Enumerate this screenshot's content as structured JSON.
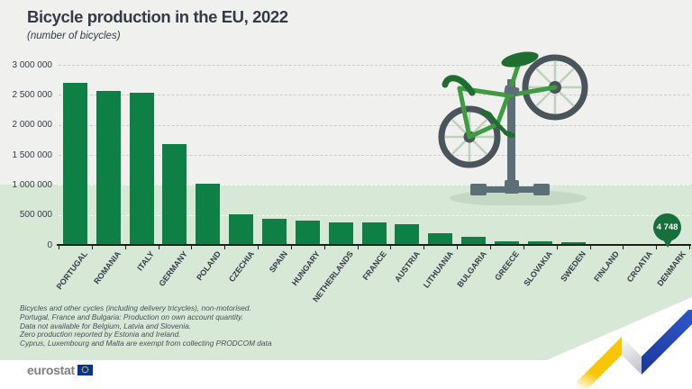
{
  "header": {
    "title": "Bicycle production in the EU, 2022",
    "subtitle": "(number of bicycles)"
  },
  "chart_data": {
    "type": "bar",
    "title": "Bicycle production in the EU, 2022",
    "unit": "number of bicycles",
    "categories": [
      "PORTUGAL",
      "ROMANIA",
      "ITALY",
      "GERMANY",
      "POLAND",
      "CZECHIA",
      "SPAIN",
      "HUNGARY",
      "NETHERLANDS",
      "FRANCE",
      "AUSTRIA",
      "LITHUANIA",
      "BULGARIA",
      "GREECE",
      "SLOVAKIA",
      "SWEDEN",
      "FINLAND",
      "CROATIA",
      "DENMARK"
    ],
    "values": [
      2700000,
      2560000,
      2540000,
      1680000,
      1020000,
      505000,
      430000,
      400000,
      380000,
      375000,
      340000,
      200000,
      130000,
      65000,
      60000,
      45000,
      15000,
      8000,
      4748
    ],
    "ylim": [
      0,
      3000000
    ],
    "yticks": [
      {
        "value": 0,
        "label": "0"
      },
      {
        "value": 500000,
        "label": "500 000"
      },
      {
        "value": 1000000,
        "label": "1 000 000"
      },
      {
        "value": 1500000,
        "label": "1 500 000"
      },
      {
        "value": 2000000,
        "label": "2 000 000"
      },
      {
        "value": 2500000,
        "label": "2 500 000"
      },
      {
        "value": 3000000,
        "label": "3 000 000"
      }
    ],
    "grid": "dashed-horizontal",
    "legend": "none",
    "annotation": {
      "category": "DENMARK",
      "value": 4748,
      "label": "4 748"
    }
  },
  "footnotes": [
    "Bicycles and other cycles (including delivery tricycles), non-motorised.",
    "Portugal, France and Bulgaria: Production on own account quantity.",
    "Data not available for Belgium, Latvia and Slovenia.",
    "Zero production reported by Estonia and Ireland.",
    "Cyprus, Luxembourg and Malta are exempt from collecting PRODCOM data"
  ],
  "footer": {
    "logo_text": "eurostat"
  },
  "colors": {
    "background_top": "#f0f1ef",
    "background_band": "#d8e8d6",
    "bar": "#0e8045",
    "callout": "#176f3d",
    "title_text": "#333a48",
    "eu_blue": "#003399",
    "eu_yellow": "#ffcc00"
  }
}
